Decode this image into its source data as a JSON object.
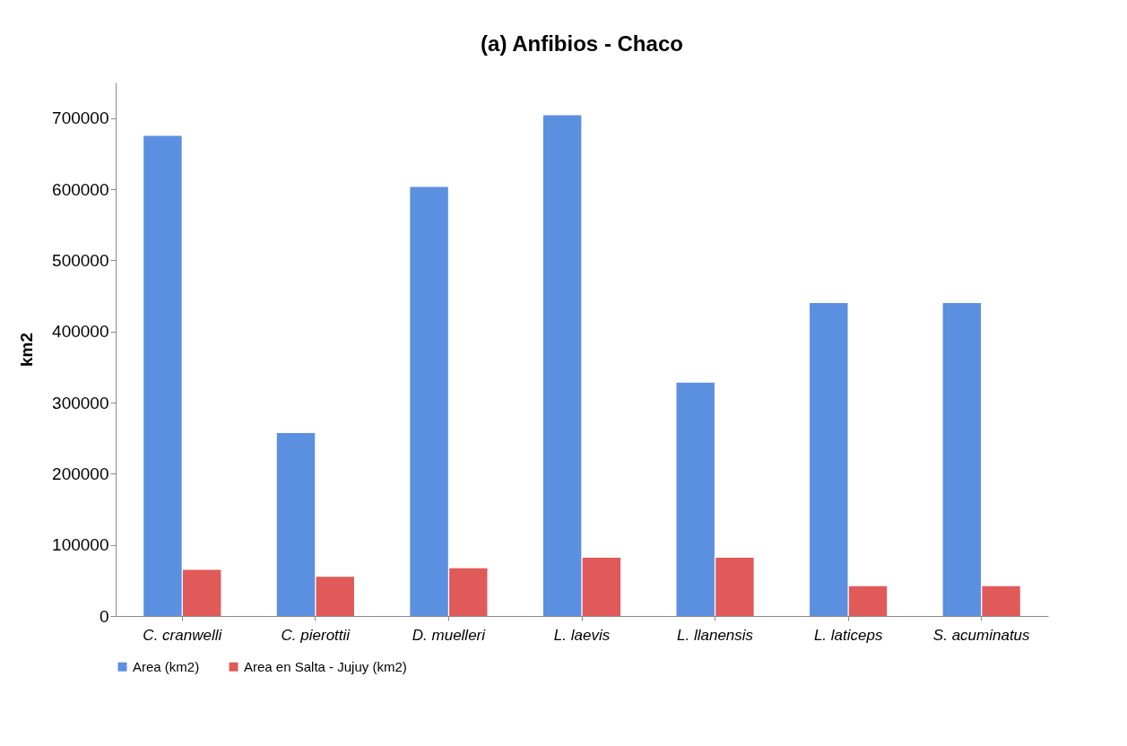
{
  "chart_data": {
    "type": "bar",
    "title": "(a) Anfibios - Chaco",
    "ylabel": "km2",
    "categories": [
      "C. cranwelli",
      "C. pierottii",
      "D. muelleri",
      "L. laevis",
      "L. llanensis",
      "L. laticeps",
      "S. acuminatus"
    ],
    "series": [
      {
        "name": "Area (km2)",
        "color": "#5b8fe0",
        "values": [
          675000,
          257000,
          603000,
          704000,
          328000,
          440000,
          440000
        ]
      },
      {
        "name": "Area en Salta - Jujuy (km2)",
        "color": "#e05a5a",
        "values": [
          65000,
          55000,
          67000,
          82000,
          82000,
          42000,
          42000
        ]
      }
    ],
    "ylim": [
      0,
      750000
    ],
    "yticks": [
      0,
      100000,
      200000,
      300000,
      400000,
      500000,
      600000,
      700000
    ],
    "grid": false,
    "legend": "bottom"
  }
}
